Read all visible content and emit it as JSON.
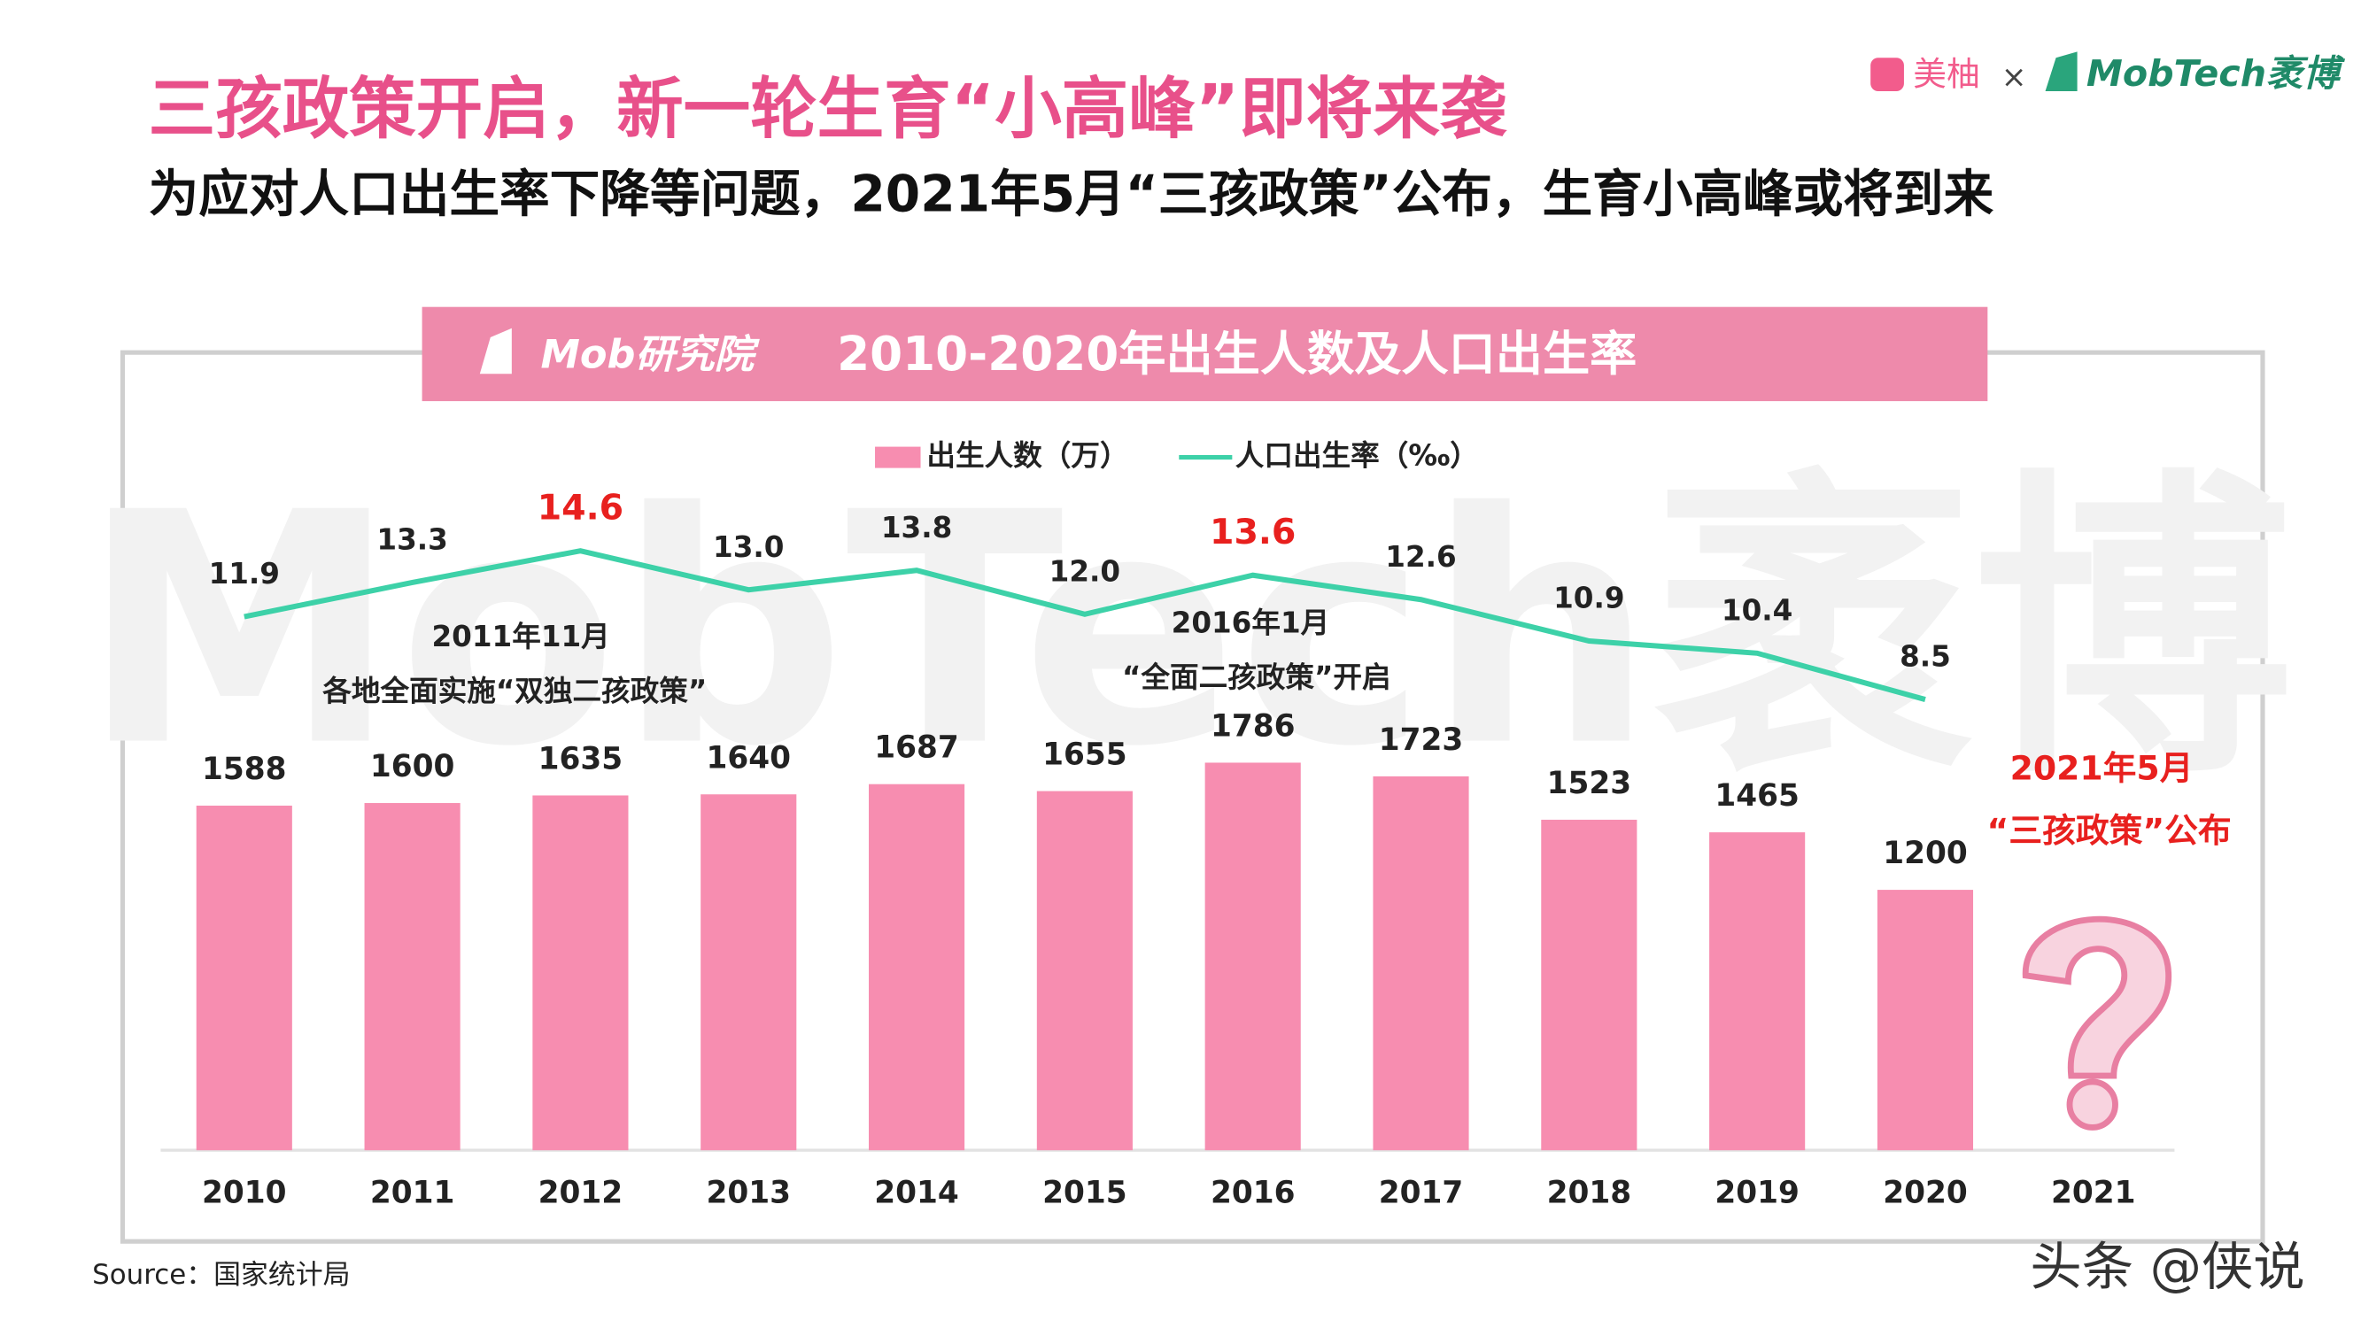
{
  "header": {
    "title": "三孩政策开启，新一轮生育“小高峰”即将来袭",
    "subtitle": "为应对人口出生率下降等问题，2021年5月“三孩政策”公布，生育小高峰或将到来",
    "logo_left": "美柚",
    "logo_sep": "×",
    "logo_right": "MobTech袤博"
  },
  "chart_data": {
    "type": "bar_line",
    "title": "2010-2020年出生人数及人口出生率",
    "brand": "Mob研究院",
    "watermark": "MobTech袤博",
    "categories": [
      "2010",
      "2011",
      "2012",
      "2013",
      "2014",
      "2015",
      "2016",
      "2017",
      "2018",
      "2019",
      "2020",
      "2021"
    ],
    "series": [
      {
        "name": "出生人数（万）",
        "type": "bar",
        "color": "#f78db0",
        "values": [
          1588,
          1600,
          1635,
          1640,
          1687,
          1655,
          1786,
          1723,
          1523,
          1465,
          1200,
          null
        ]
      },
      {
        "name": "人口出生率（‰）",
        "type": "line",
        "axis": "y2",
        "color": "#3dd1a8",
        "values": [
          11.9,
          13.3,
          14.6,
          13.0,
          13.8,
          12.0,
          13.6,
          12.6,
          10.9,
          10.4,
          8.5,
          null
        ],
        "value_labels": [
          "11.9",
          "13.3",
          "14.6",
          "13.0",
          "13.8",
          "12.0",
          "13.6",
          "12.6",
          "10.9",
          "10.4",
          "8.5",
          null
        ],
        "label_colors": [
          "#222",
          "#222",
          "#e8201e",
          "#222",
          "#222",
          "#222",
          "#e8201e",
          "#222",
          "#222",
          "#222",
          "#222",
          "#222"
        ]
      }
    ],
    "ylim": [
      0,
      3200
    ],
    "y2lim": [
      -10,
      18.5
    ],
    "annotations": [
      "2011年11月",
      "各地全面实施“双独二孩政策”",
      "2016年1月",
      "“全面二孩政策”开启",
      "2021年5月",
      "“三孩政策”公布"
    ]
  },
  "footer": {
    "source": "Source：国家统计局",
    "watermark": "头条 @侠说"
  }
}
